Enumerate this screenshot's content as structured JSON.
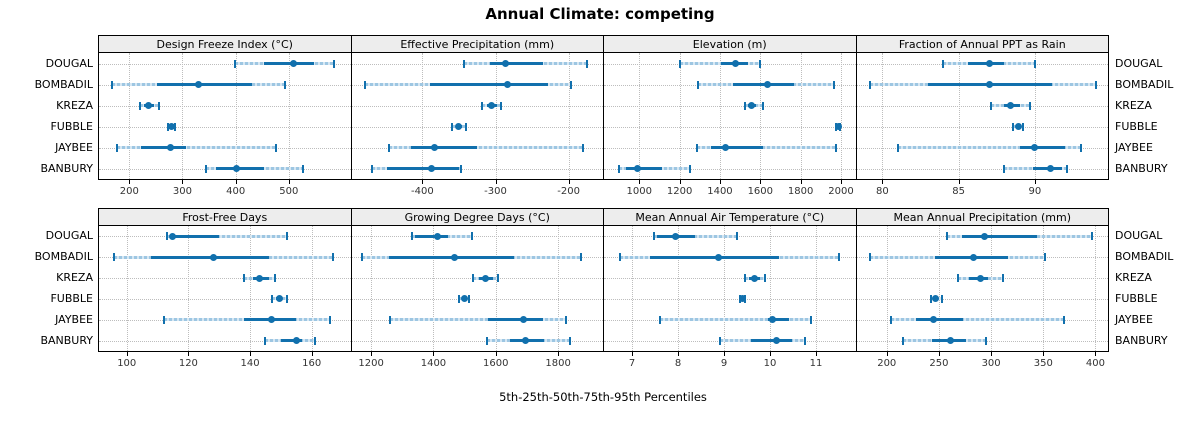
{
  "title": "Annual Climate: competing",
  "xlabel": "5th-25th-50th-75th-95th Percentiles",
  "categories": [
    "DOUGAL",
    "BOMBADIL",
    "KREZA",
    "FUBBLE",
    "JAYBEE",
    "BANBURY"
  ],
  "percentile_labels": [
    "5th",
    "25th",
    "50th",
    "75th",
    "95th"
  ],
  "colors": {
    "marker": "#1170ad",
    "band_light": "#9dc6e2",
    "gridline": "#bdbdbd",
    "strip_bg": "#ededed",
    "border": "#000000",
    "tick_text": "#333333"
  },
  "chart_data": [
    {
      "type": "dotplot-percentile",
      "title": "Design Freeze Index (°C)",
      "row": 0,
      "col": 0,
      "xlim": [
        143,
        616
      ],
      "xticks": [
        200,
        300,
        400,
        500
      ],
      "series": [
        {
          "name": "DOUGAL",
          "percentiles": [
            398,
            453,
            508,
            548,
            585
          ]
        },
        {
          "name": "BOMBADIL",
          "percentiles": [
            168,
            253,
            330,
            430,
            493
          ]
        },
        {
          "name": "KREZA",
          "percentiles": [
            221,
            228,
            237,
            247,
            256
          ]
        },
        {
          "name": "FUBBLE",
          "percentiles": [
            272,
            276,
            279,
            282,
            286
          ]
        },
        {
          "name": "JAYBEE",
          "percentiles": [
            177,
            222,
            278,
            307,
            476
          ]
        },
        {
          "name": "BANBURY",
          "percentiles": [
            344,
            363,
            401,
            453,
            526
          ]
        }
      ]
    },
    {
      "type": "dotplot-percentile",
      "title": "Effective Precipitation (mm)",
      "row": 0,
      "col": 1,
      "xlim": [
        -497,
        -153
      ],
      "xticks": [
        -400,
        -300,
        -200
      ],
      "series": [
        {
          "name": "DOUGAL",
          "percentiles": [
            -343,
            -308,
            -287,
            -235,
            -175
          ]
        },
        {
          "name": "BOMBADIL",
          "percentiles": [
            -479,
            -390,
            -283,
            -228,
            -197
          ]
        },
        {
          "name": "KREZA",
          "percentiles": [
            -318,
            -311,
            -305,
            -298,
            -292
          ]
        },
        {
          "name": "FUBBLE",
          "percentiles": [
            -360,
            -354,
            -350,
            -346,
            -341
          ]
        },
        {
          "name": "JAYBEE",
          "percentiles": [
            -446,
            -416,
            -384,
            -326,
            -180
          ]
        },
        {
          "name": "BANBURY",
          "percentiles": [
            -469,
            -448,
            -387,
            -350,
            -347
          ]
        }
      ]
    },
    {
      "type": "dotplot-percentile",
      "title": "Elevation (m)",
      "row": 0,
      "col": 2,
      "xlim": [
        825,
        2072
      ],
      "xticks": [
        1000,
        1200,
        1400,
        1600,
        1800,
        2000
      ],
      "series": [
        {
          "name": "DOUGAL",
          "percentiles": [
            1200,
            1407,
            1477,
            1538,
            1600
          ]
        },
        {
          "name": "BOMBADIL",
          "percentiles": [
            1290,
            1464,
            1637,
            1767,
            1964
          ]
        },
        {
          "name": "KREZA",
          "percentiles": [
            1525,
            1538,
            1554,
            1580,
            1611
          ]
        },
        {
          "name": "FUBBLE",
          "percentiles": [
            1975,
            1982,
            1986,
            1990,
            1995
          ]
        },
        {
          "name": "JAYBEE",
          "percentiles": [
            1285,
            1358,
            1428,
            1611,
            1975
          ]
        },
        {
          "name": "BANBURY",
          "percentiles": [
            900,
            932,
            989,
            1112,
            1251
          ]
        }
      ]
    },
    {
      "type": "dotplot-percentile",
      "title": "Fraction of Annual PPT as Rain",
      "row": 0,
      "col": 3,
      "xlim": [
        78.3,
        94.8
      ],
      "xticks": [
        80,
        85,
        90
      ],
      "series": [
        {
          "name": "DOUGAL",
          "percentiles": [
            84.0,
            85.6,
            87.0,
            88.0,
            90.0
          ]
        },
        {
          "name": "BOMBADIL",
          "percentiles": [
            79.2,
            83.0,
            87.0,
            91.1,
            94.0
          ]
        },
        {
          "name": "KREZA",
          "percentiles": [
            87.1,
            88.0,
            88.4,
            89.0,
            89.7
          ]
        },
        {
          "name": "FUBBLE",
          "percentiles": [
            88.6,
            88.8,
            88.9,
            89.05,
            89.2
          ]
        },
        {
          "name": "JAYBEE",
          "percentiles": [
            81.0,
            89.0,
            90.0,
            92.0,
            93.0
          ]
        },
        {
          "name": "BANBURY",
          "percentiles": [
            88.0,
            89.9,
            91.0,
            91.8,
            92.1
          ]
        }
      ]
    },
    {
      "type": "dotplot-percentile",
      "title": "Frost-Free Days",
      "row": 1,
      "col": 0,
      "xlim": [
        91,
        172.6
      ],
      "xticks": [
        100,
        120,
        140,
        160
      ],
      "series": [
        {
          "name": "DOUGAL",
          "percentiles": [
            113,
            114,
            115,
            130,
            152
          ]
        },
        {
          "name": "BOMBADIL",
          "percentiles": [
            96,
            108,
            128,
            146,
            167
          ]
        },
        {
          "name": "KREZA",
          "percentiles": [
            138,
            141,
            143,
            146,
            148
          ]
        },
        {
          "name": "FUBBLE",
          "percentiles": [
            147,
            148.5,
            149.5,
            150.5,
            152
          ]
        },
        {
          "name": "JAYBEE",
          "percentiles": [
            112,
            138,
            147,
            155,
            166
          ]
        },
        {
          "name": "BANBURY",
          "percentiles": [
            145,
            150,
            155,
            157,
            161
          ]
        }
      ]
    },
    {
      "type": "dotplot-percentile",
      "title": "Growing Degree Days (°C)",
      "row": 1,
      "col": 1,
      "xlim": [
        1137,
        1944
      ],
      "xticks": [
        1200,
        1400,
        1600,
        1800
      ],
      "series": [
        {
          "name": "DOUGAL",
          "percentiles": [
            1330,
            1340,
            1414,
            1447,
            1524
          ]
        },
        {
          "name": "BOMBADIL",
          "percentiles": [
            1170,
            1258,
            1468,
            1660,
            1874
          ]
        },
        {
          "name": "KREZA",
          "percentiles": [
            1526,
            1545,
            1566,
            1590,
            1607
          ]
        },
        {
          "name": "FUBBLE",
          "percentiles": [
            1483,
            1493,
            1500,
            1507,
            1513
          ]
        },
        {
          "name": "JAYBEE",
          "percentiles": [
            1262,
            1575,
            1690,
            1750,
            1824
          ]
        },
        {
          "name": "BANBURY",
          "percentiles": [
            1572,
            1645,
            1695,
            1755,
            1837
          ]
        }
      ]
    },
    {
      "type": "dotplot-percentile",
      "title": "Mean Annual Air Temperature (°C)",
      "row": 1,
      "col": 2,
      "xlim": [
        6.39,
        11.86
      ],
      "xticks": [
        7,
        8,
        9,
        10,
        11
      ],
      "series": [
        {
          "name": "DOUGAL",
          "percentiles": [
            7.47,
            7.55,
            7.94,
            8.37,
            9.29
          ]
        },
        {
          "name": "BOMBADIL",
          "percentiles": [
            6.73,
            7.38,
            8.87,
            10.2,
            11.51
          ]
        },
        {
          "name": "KREZA",
          "percentiles": [
            9.46,
            9.55,
            9.66,
            9.78,
            9.89
          ]
        },
        {
          "name": "FUBBLE",
          "percentiles": [
            9.34,
            9.37,
            9.4,
            9.43,
            9.46
          ]
        },
        {
          "name": "JAYBEE",
          "percentiles": [
            7.61,
            9.95,
            10.06,
            10.42,
            10.9
          ]
        },
        {
          "name": "BANBURY",
          "percentiles": [
            8.91,
            9.59,
            10.14,
            10.47,
            10.76
          ]
        }
      ]
    },
    {
      "type": "dotplot-percentile",
      "title": "Mean Annual Precipitation (mm)",
      "row": 1,
      "col": 3,
      "xlim": [
        171,
        412
      ],
      "xticks": [
        200,
        250,
        300,
        350,
        400
      ],
      "series": [
        {
          "name": "DOUGAL",
          "percentiles": [
            258,
            272,
            294,
            344,
            397
          ]
        },
        {
          "name": "BOMBADIL",
          "percentiles": [
            184,
            246,
            283,
            316,
            352
          ]
        },
        {
          "name": "KREZA",
          "percentiles": [
            268,
            279,
            290,
            297,
            311
          ]
        },
        {
          "name": "FUBBLE",
          "percentiles": [
            242,
            244,
            246.5,
            249,
            253
          ]
        },
        {
          "name": "JAYBEE",
          "percentiles": [
            204,
            228,
            245,
            273,
            370
          ]
        },
        {
          "name": "BANBURY",
          "percentiles": [
            216,
            243,
            261,
            276,
            295
          ]
        }
      ]
    }
  ]
}
